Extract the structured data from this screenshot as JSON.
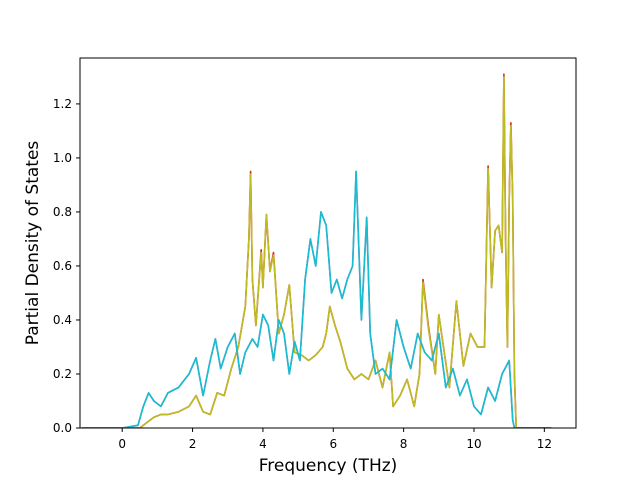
{
  "chart_data": {
    "type": "line",
    "title": "",
    "xlabel": "Frequency (THz)",
    "ylabel": "Partial Density of States",
    "xlim": [
      -1.2,
      12.9
    ],
    "ylim": [
      0.0,
      1.37
    ],
    "xticks": [
      0,
      2,
      4,
      6,
      8,
      10,
      12
    ],
    "yticks": [
      0.0,
      0.2,
      0.4,
      0.6,
      0.8,
      1.0,
      1.2
    ],
    "grid": false,
    "legend": "none",
    "series": [
      {
        "color": "#d62728",
        "x": [
          -1.15,
          0.0,
          0.5,
          0.7,
          0.9,
          1.1,
          1.3,
          1.6,
          1.9,
          2.1,
          2.3,
          2.5,
          2.7,
          2.9,
          3.1,
          3.3,
          3.5,
          3.6,
          3.65,
          3.7,
          3.8,
          3.95,
          4.0,
          4.1,
          4.2,
          4.3,
          4.45,
          4.6,
          4.75,
          4.9,
          5.1,
          5.3,
          5.5,
          5.7,
          5.8,
          5.9,
          6.05,
          6.2,
          6.4,
          6.6,
          6.8,
          7.0,
          7.2,
          7.4,
          7.6,
          7.7,
          7.9,
          8.1,
          8.3,
          8.45,
          8.55,
          8.7,
          8.9,
          9.0,
          9.1,
          9.3,
          9.5,
          9.7,
          9.9,
          10.1,
          10.3,
          10.4,
          10.5,
          10.6,
          10.7,
          10.8,
          10.85,
          10.9,
          10.95,
          11.0,
          11.05,
          11.1,
          11.15,
          11.2,
          12.2
        ],
        "y": [
          0.0,
          0.0,
          0.0,
          0.02,
          0.04,
          0.05,
          0.05,
          0.06,
          0.08,
          0.12,
          0.06,
          0.05,
          0.13,
          0.12,
          0.22,
          0.3,
          0.45,
          0.7,
          0.95,
          0.55,
          0.38,
          0.66,
          0.52,
          0.79,
          0.58,
          0.65,
          0.35,
          0.42,
          0.53,
          0.28,
          0.27,
          0.25,
          0.27,
          0.3,
          0.35,
          0.45,
          0.38,
          0.32,
          0.22,
          0.18,
          0.2,
          0.18,
          0.25,
          0.15,
          0.28,
          0.08,
          0.12,
          0.18,
          0.08,
          0.2,
          0.55,
          0.38,
          0.2,
          0.42,
          0.33,
          0.15,
          0.47,
          0.23,
          0.35,
          0.3,
          0.3,
          0.97,
          0.52,
          0.73,
          0.75,
          0.65,
          1.31,
          0.7,
          0.3,
          0.85,
          1.13,
          0.85,
          0.2,
          0.0,
          0.0
        ]
      },
      {
        "color": "#bcbd22",
        "x": [
          -1.15,
          0.0,
          0.5,
          0.7,
          0.9,
          1.1,
          1.3,
          1.6,
          1.9,
          2.1,
          2.3,
          2.5,
          2.7,
          2.9,
          3.1,
          3.3,
          3.5,
          3.6,
          3.65,
          3.7,
          3.8,
          3.95,
          4.0,
          4.1,
          4.2,
          4.3,
          4.45,
          4.6,
          4.75,
          4.9,
          5.1,
          5.3,
          5.5,
          5.7,
          5.8,
          5.9,
          6.05,
          6.2,
          6.4,
          6.6,
          6.8,
          7.0,
          7.2,
          7.4,
          7.6,
          7.7,
          7.9,
          8.1,
          8.3,
          8.45,
          8.55,
          8.7,
          8.9,
          9.0,
          9.1,
          9.3,
          9.5,
          9.7,
          9.9,
          10.1,
          10.3,
          10.4,
          10.5,
          10.6,
          10.7,
          10.8,
          10.85,
          10.9,
          10.95,
          11.0,
          11.05,
          11.1,
          11.15,
          11.2,
          12.2
        ],
        "y": [
          0.0,
          0.0,
          0.0,
          0.02,
          0.04,
          0.05,
          0.05,
          0.06,
          0.08,
          0.12,
          0.06,
          0.05,
          0.13,
          0.12,
          0.22,
          0.3,
          0.45,
          0.7,
          0.94,
          0.55,
          0.38,
          0.65,
          0.52,
          0.79,
          0.58,
          0.64,
          0.35,
          0.42,
          0.53,
          0.28,
          0.27,
          0.25,
          0.27,
          0.3,
          0.35,
          0.45,
          0.38,
          0.32,
          0.22,
          0.18,
          0.2,
          0.18,
          0.25,
          0.15,
          0.28,
          0.08,
          0.12,
          0.18,
          0.08,
          0.2,
          0.54,
          0.37,
          0.2,
          0.42,
          0.33,
          0.15,
          0.47,
          0.23,
          0.35,
          0.3,
          0.3,
          0.96,
          0.52,
          0.73,
          0.75,
          0.65,
          1.3,
          0.7,
          0.3,
          0.85,
          1.12,
          0.85,
          0.2,
          0.0,
          0.0
        ]
      },
      {
        "color": "#9467bd",
        "x": [
          -1.15,
          0.0,
          0.45,
          0.6,
          0.75,
          0.9,
          1.1,
          1.3,
          1.6,
          1.9,
          2.1,
          2.3,
          2.5,
          2.65,
          2.8,
          3.0,
          3.2,
          3.35,
          3.5,
          3.7,
          3.85,
          4.0,
          4.15,
          4.3,
          4.45,
          4.6,
          4.75,
          4.9,
          5.05,
          5.2,
          5.35,
          5.5,
          5.65,
          5.8,
          5.95,
          6.1,
          6.25,
          6.4,
          6.55,
          6.65,
          6.8,
          6.95,
          7.05,
          7.2,
          7.4,
          7.6,
          7.8,
          8.0,
          8.2,
          8.4,
          8.6,
          8.8,
          9.0,
          9.2,
          9.4,
          9.6,
          9.8,
          10.0,
          10.2,
          10.4,
          10.6,
          10.8,
          11.0,
          11.1,
          11.15,
          12.2
        ],
        "y": [
          0.0,
          0.0,
          0.01,
          0.08,
          0.13,
          0.1,
          0.08,
          0.13,
          0.15,
          0.2,
          0.26,
          0.12,
          0.25,
          0.33,
          0.22,
          0.3,
          0.35,
          0.2,
          0.28,
          0.33,
          0.3,
          0.42,
          0.38,
          0.25,
          0.4,
          0.35,
          0.2,
          0.32,
          0.25,
          0.55,
          0.7,
          0.6,
          0.8,
          0.75,
          0.5,
          0.55,
          0.48,
          0.55,
          0.6,
          0.95,
          0.4,
          0.78,
          0.35,
          0.2,
          0.22,
          0.18,
          0.4,
          0.3,
          0.22,
          0.35,
          0.28,
          0.25,
          0.35,
          0.15,
          0.22,
          0.12,
          0.18,
          0.08,
          0.05,
          0.15,
          0.1,
          0.2,
          0.25,
          0.03,
          0.0,
          0.0
        ]
      },
      {
        "color": "#17becf",
        "x": [
          -1.15,
          0.0,
          0.45,
          0.6,
          0.75,
          0.9,
          1.1,
          1.3,
          1.6,
          1.9,
          2.1,
          2.3,
          2.5,
          2.65,
          2.8,
          3.0,
          3.2,
          3.35,
          3.5,
          3.7,
          3.85,
          4.0,
          4.15,
          4.3,
          4.45,
          4.6,
          4.75,
          4.9,
          5.05,
          5.2,
          5.35,
          5.5,
          5.65,
          5.8,
          5.95,
          6.1,
          6.25,
          6.4,
          6.55,
          6.65,
          6.8,
          6.95,
          7.05,
          7.2,
          7.4,
          7.6,
          7.8,
          8.0,
          8.2,
          8.4,
          8.6,
          8.8,
          9.0,
          9.2,
          9.4,
          9.6,
          9.8,
          10.0,
          10.2,
          10.4,
          10.6,
          10.8,
          11.0,
          11.1,
          11.15,
          12.2
        ],
        "y": [
          0.0,
          0.0,
          0.01,
          0.08,
          0.13,
          0.1,
          0.08,
          0.13,
          0.15,
          0.2,
          0.26,
          0.12,
          0.25,
          0.33,
          0.22,
          0.3,
          0.35,
          0.2,
          0.28,
          0.33,
          0.3,
          0.42,
          0.38,
          0.25,
          0.4,
          0.35,
          0.2,
          0.32,
          0.25,
          0.55,
          0.7,
          0.6,
          0.8,
          0.75,
          0.5,
          0.55,
          0.48,
          0.55,
          0.6,
          0.95,
          0.4,
          0.78,
          0.35,
          0.2,
          0.22,
          0.18,
          0.4,
          0.3,
          0.22,
          0.35,
          0.28,
          0.25,
          0.35,
          0.15,
          0.22,
          0.12,
          0.18,
          0.08,
          0.05,
          0.15,
          0.1,
          0.2,
          0.25,
          0.03,
          0.0,
          0.0
        ]
      }
    ]
  }
}
